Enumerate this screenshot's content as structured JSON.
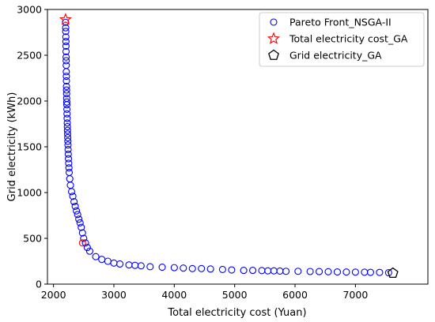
{
  "chart_data": {
    "type": "scatter",
    "xlabel": "Total electricity cost (Yuan)",
    "ylabel": "Grid electricity (kWh)",
    "xlim": [
      1900,
      8200
    ],
    "ylim": [
      0,
      3000
    ],
    "xticks": [
      2000,
      3000,
      4000,
      5000,
      6000,
      7000
    ],
    "yticks": [
      0,
      500,
      1000,
      1500,
      2000,
      2500,
      3000
    ],
    "grid": false,
    "legend_position": "top-right",
    "series": [
      {
        "name": "Pareto Front_NSGA-II",
        "marker": "circle",
        "color": "#0000ff",
        "points": [
          [
            2200,
            2860
          ],
          [
            2202,
            2800
          ],
          [
            2203,
            2760
          ],
          [
            2205,
            2700
          ],
          [
            2206,
            2650
          ],
          [
            2207,
            2600
          ],
          [
            2208,
            2540
          ],
          [
            2209,
            2480
          ],
          [
            2210,
            2440
          ],
          [
            2211,
            2390
          ],
          [
            2212,
            2320
          ],
          [
            2213,
            2270
          ],
          [
            2214,
            2220
          ],
          [
            2215,
            2160
          ],
          [
            2216,
            2120
          ],
          [
            2217,
            2080
          ],
          [
            2218,
            2030
          ],
          [
            2220,
            1990
          ],
          [
            2221,
            1960
          ],
          [
            2222,
            1910
          ],
          [
            2224,
            1860
          ],
          [
            2226,
            1810
          ],
          [
            2228,
            1760
          ],
          [
            2230,
            1720
          ],
          [
            2232,
            1680
          ],
          [
            2234,
            1640
          ],
          [
            2236,
            1600
          ],
          [
            2238,
            1560
          ],
          [
            2240,
            1520
          ],
          [
            2242,
            1470
          ],
          [
            2245,
            1420
          ],
          [
            2248,
            1370
          ],
          [
            2252,
            1320
          ],
          [
            2256,
            1270
          ],
          [
            2260,
            1220
          ],
          [
            2270,
            1150
          ],
          [
            2280,
            1080
          ],
          [
            2300,
            1010
          ],
          [
            2320,
            960
          ],
          [
            2340,
            900
          ],
          [
            2360,
            850
          ],
          [
            2380,
            800
          ],
          [
            2400,
            760
          ],
          [
            2420,
            710
          ],
          [
            2440,
            670
          ],
          [
            2460,
            620
          ],
          [
            2480,
            560
          ],
          [
            2500,
            500
          ],
          [
            2530,
            450
          ],
          [
            2560,
            400
          ],
          [
            2600,
            360
          ],
          [
            2700,
            300
          ],
          [
            2800,
            270
          ],
          [
            2900,
            250
          ],
          [
            3000,
            230
          ],
          [
            3100,
            220
          ],
          [
            3250,
            210
          ],
          [
            3350,
            205
          ],
          [
            3450,
            200
          ],
          [
            3600,
            190
          ],
          [
            3800,
            185
          ],
          [
            4000,
            180
          ],
          [
            4150,
            175
          ],
          [
            4300,
            170
          ],
          [
            4450,
            170
          ],
          [
            4600,
            165
          ],
          [
            4800,
            160
          ],
          [
            4950,
            155
          ],
          [
            5150,
            150
          ],
          [
            5300,
            150
          ],
          [
            5450,
            148
          ],
          [
            5550,
            145
          ],
          [
            5650,
            145
          ],
          [
            5750,
            143
          ],
          [
            5850,
            140
          ],
          [
            6050,
            140
          ],
          [
            6250,
            138
          ],
          [
            6400,
            137
          ],
          [
            6550,
            135
          ],
          [
            6700,
            133
          ],
          [
            6850,
            132
          ],
          [
            7000,
            131
          ],
          [
            7150,
            130
          ],
          [
            7250,
            129
          ],
          [
            7400,
            128
          ],
          [
            7550,
            125
          ]
        ]
      },
      {
        "name": "Total electricity cost_GA",
        "marker": "star",
        "color": "#ff0000",
        "points": [
          [
            2200,
            2890
          ]
        ]
      },
      {
        "name": "Grid electricity_GA",
        "marker": "pentagon",
        "color": "#000000",
        "points": [
          [
            7620,
            120
          ]
        ]
      }
    ],
    "extra_points": [
      {
        "marker": "circle",
        "color": "#ff0000",
        "point": [
          2480,
          450
        ]
      }
    ]
  }
}
